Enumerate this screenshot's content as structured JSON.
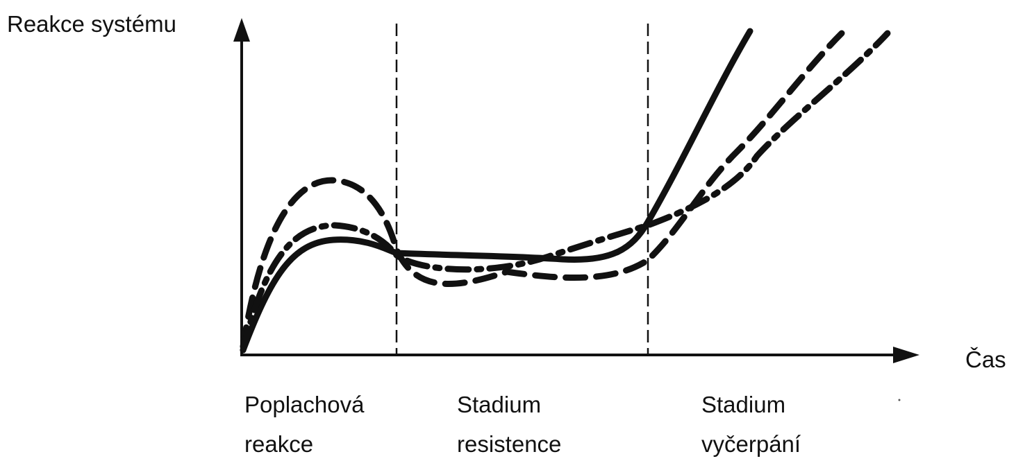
{
  "axes": {
    "y_label": "Reakce systému",
    "x_label": "Čas"
  },
  "stages": [
    {
      "line1": "Poplachová",
      "line2": "reakce"
    },
    {
      "line1": "Stadium",
      "line2": "resistence"
    },
    {
      "line1": "Stadium",
      "line2": "vyčerpání"
    }
  ],
  "curves": [
    {
      "style": "solid"
    },
    {
      "style": "dashed"
    },
    {
      "style": "dash-dot"
    }
  ],
  "colors": {
    "ink": "#111111",
    "background": "#ffffff"
  }
}
